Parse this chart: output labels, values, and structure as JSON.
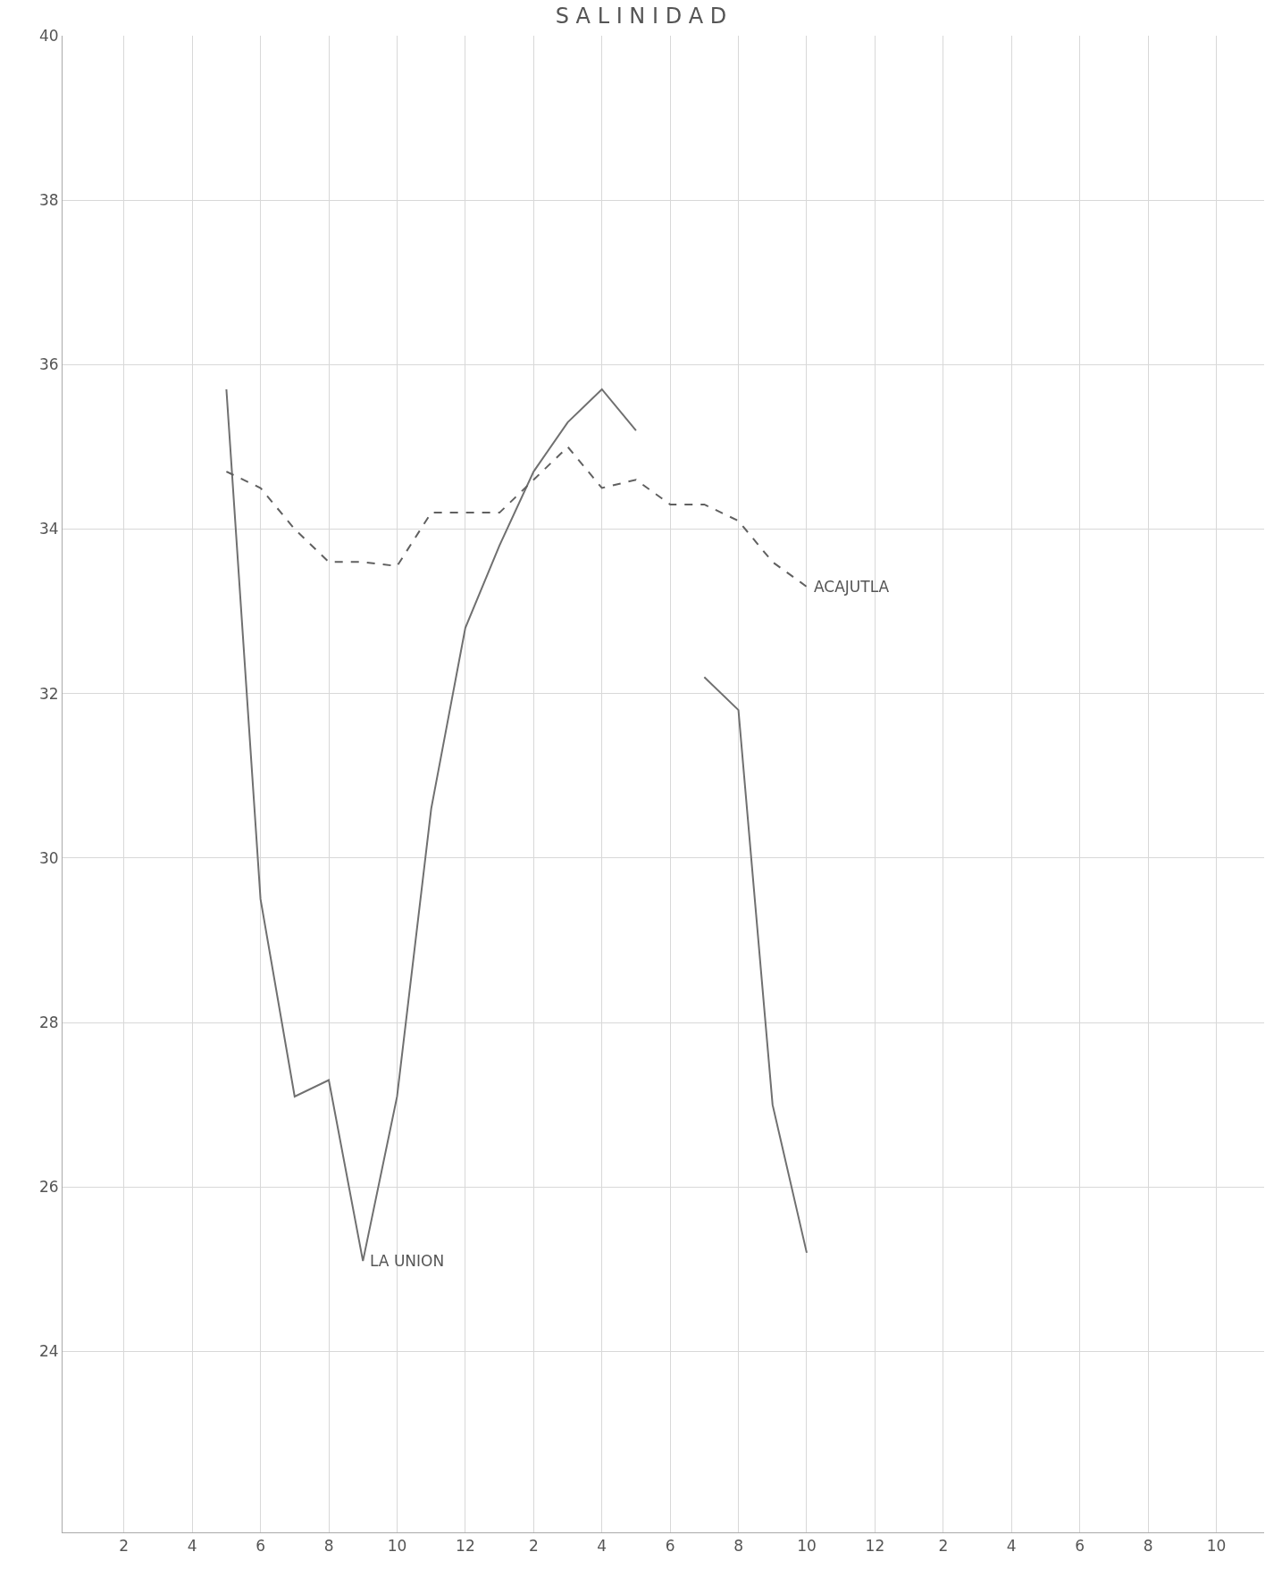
{
  "chart_data": {
    "type": "line",
    "title": "S A L I N I D A D",
    "categories": [
      null,
      "2",
      null,
      "4",
      null,
      "6",
      null,
      "8",
      null,
      "10",
      null,
      "12",
      null,
      "2",
      null,
      "4",
      null,
      "6",
      null,
      "8",
      null,
      "10",
      null,
      "12",
      null,
      "2",
      null,
      "4",
      null,
      "6",
      null,
      "8",
      null,
      "10",
      null
    ],
    "series": [
      {
        "name": "LA UNION",
        "color": "#707070",
        "line_style": "solid",
        "values": [
          null,
          null,
          null,
          null,
          35.7,
          29.5,
          27.1,
          27.3,
          25.1,
          27.1,
          30.6,
          32.8,
          33.8,
          34.7,
          35.3,
          35.7,
          35.2,
          null,
          32.2,
          31.8,
          27.0,
          25.2,
          null,
          null,
          null,
          null,
          null,
          null,
          null,
          null,
          null,
          null,
          null,
          null,
          null
        ]
      },
      {
        "name": "ACAJUTLA",
        "color": "#606060",
        "line_style": "dashed",
        "values": [
          null,
          null,
          null,
          null,
          34.7,
          34.5,
          34.0,
          33.6,
          33.6,
          33.55,
          34.2,
          34.2,
          34.2,
          34.6,
          35.0,
          34.5,
          34.6,
          34.3,
          34.3,
          34.1,
          33.6,
          33.3,
          null,
          null,
          null,
          null,
          null,
          null,
          null,
          null,
          null,
          null,
          null,
          null,
          null
        ]
      }
    ],
    "ylim": [
      21.8,
      40
    ],
    "yticks": [
      24,
      26,
      28,
      30,
      32,
      34,
      36,
      38,
      40
    ],
    "grid": true,
    "legend": false,
    "marker": "none"
  }
}
